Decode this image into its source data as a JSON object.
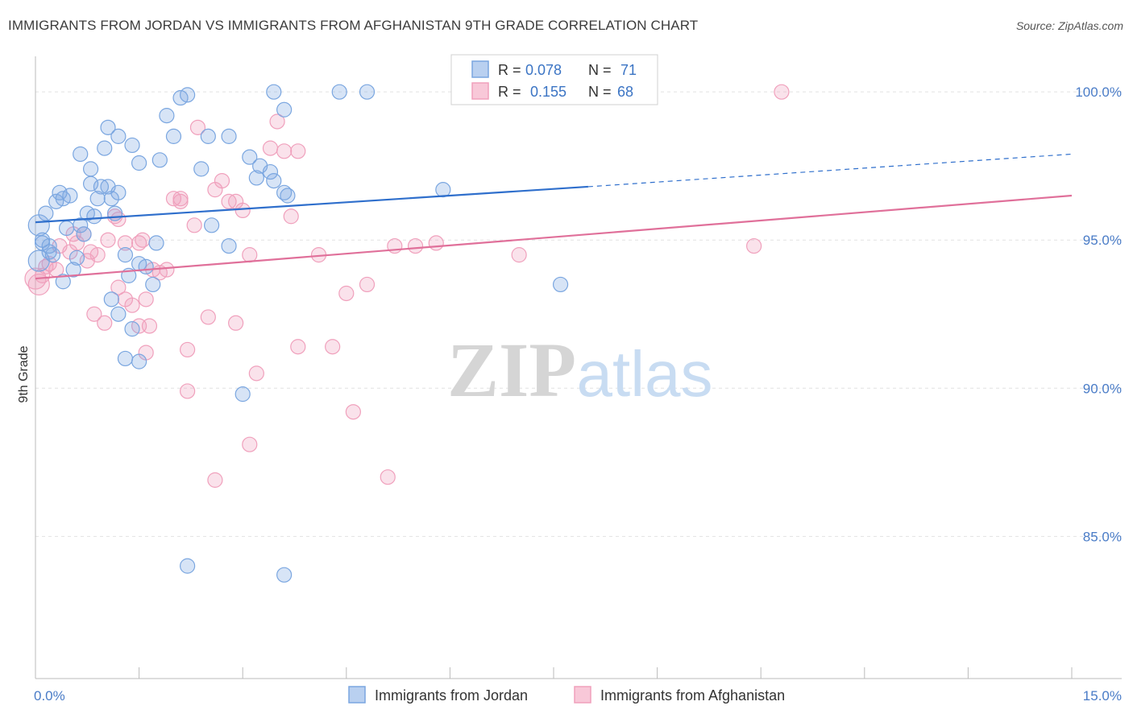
{
  "chart_data": {
    "type": "scatter",
    "title": "IMMIGRANTS FROM JORDAN VS IMMIGRANTS FROM AFGHANISTAN 9TH GRADE CORRELATION CHART",
    "source": "Source: ZipAtlas.com",
    "ylabel": "9th Grade",
    "xlabel": "",
    "xlim": [
      0,
      15
    ],
    "ylim": [
      80.2,
      101.2
    ],
    "x_tick_labels": [
      "0.0%",
      "15.0%"
    ],
    "y_ticks": [
      100,
      95,
      90,
      85
    ],
    "y_tick_labels": [
      "100.0%",
      "95.0%",
      "90.0%",
      "85.0%"
    ],
    "watermark": "ZIPatlas",
    "legend": {
      "r_label": "R =",
      "n_label": "N =",
      "entries": [
        {
          "name": "Immigrants from Jordan",
          "r": "0.078",
          "n": "71"
        },
        {
          "name": "Immigrants from Afghanistan",
          "r": "0.155",
          "n": "68"
        }
      ]
    },
    "series": [
      {
        "name": "Immigrants from Jordan",
        "color": "#7aa6e0",
        "line_color": "#2f6fcc",
        "trend": {
          "x0": 0.0,
          "y0": 95.6,
          "x1": 8.0,
          "y1": 96.8,
          "dash_to_x": 15.0,
          "dash_to_y": 97.9
        },
        "points": [
          [
            0.05,
            95.5
          ],
          [
            0.1,
            95.0
          ],
          [
            0.2,
            94.8
          ],
          [
            0.15,
            95.9
          ],
          [
            0.3,
            96.3
          ],
          [
            0.35,
            96.6
          ],
          [
            0.4,
            96.4
          ],
          [
            0.45,
            95.4
          ],
          [
            0.5,
            96.5
          ],
          [
            0.6,
            94.4
          ],
          [
            0.55,
            94.0
          ],
          [
            0.7,
            95.2
          ],
          [
            0.75,
            95.9
          ],
          [
            0.85,
            95.8
          ],
          [
            0.9,
            96.4
          ],
          [
            0.95,
            96.8
          ],
          [
            1.05,
            96.8
          ],
          [
            1.1,
            96.4
          ],
          [
            1.15,
            95.9
          ],
          [
            1.2,
            96.6
          ],
          [
            0.8,
            96.9
          ],
          [
            1.3,
            94.5
          ],
          [
            1.35,
            93.8
          ],
          [
            1.5,
            94.2
          ],
          [
            1.6,
            94.1
          ],
          [
            1.7,
            93.5
          ],
          [
            1.1,
            93.0
          ],
          [
            1.2,
            92.5
          ],
          [
            1.4,
            92.0
          ],
          [
            1.3,
            91.0
          ],
          [
            0.65,
            97.9
          ],
          [
            0.8,
            97.4
          ],
          [
            1.0,
            98.1
          ],
          [
            1.05,
            98.8
          ],
          [
            1.2,
            98.5
          ],
          [
            1.4,
            98.2
          ],
          [
            1.5,
            97.6
          ],
          [
            1.8,
            97.7
          ],
          [
            1.9,
            99.2
          ],
          [
            2.0,
            98.5
          ],
          [
            2.1,
            99.8
          ],
          [
            2.2,
            99.9
          ],
          [
            2.4,
            97.4
          ],
          [
            2.5,
            98.5
          ],
          [
            2.8,
            98.5
          ],
          [
            2.55,
            95.5
          ],
          [
            2.8,
            94.8
          ],
          [
            3.1,
            97.8
          ],
          [
            3.2,
            97.1
          ],
          [
            3.25,
            97.5
          ],
          [
            3.4,
            97.3
          ],
          [
            3.45,
            97.0
          ],
          [
            3.6,
            99.4
          ],
          [
            3.45,
            100.0
          ],
          [
            4.4,
            100.0
          ],
          [
            4.8,
            100.0
          ],
          [
            3.6,
            96.6
          ],
          [
            3.65,
            96.5
          ],
          [
            5.9,
            96.7
          ],
          [
            7.6,
            93.5
          ],
          [
            3.0,
            89.8
          ],
          [
            2.2,
            84.0
          ],
          [
            3.6,
            83.7
          ],
          [
            0.2,
            94.6
          ],
          [
            0.05,
            94.3
          ],
          [
            0.4,
            93.6
          ],
          [
            0.25,
            94.5
          ],
          [
            1.75,
            94.9
          ],
          [
            0.65,
            95.5
          ],
          [
            0.1,
            94.9
          ],
          [
            1.5,
            90.9
          ]
        ]
      },
      {
        "name": "Immigrants from Afghanistan",
        "color": "#f0a0bc",
        "line_color": "#e0709a",
        "trend": {
          "x0": 0.0,
          "y0": 93.7,
          "x1": 15.0,
          "y1": 96.5
        },
        "points": [
          [
            0.05,
            93.5
          ],
          [
            0.1,
            93.8
          ],
          [
            0.2,
            94.2
          ],
          [
            0.3,
            94.0
          ],
          [
            0.35,
            94.8
          ],
          [
            0.5,
            94.6
          ],
          [
            0.55,
            95.2
          ],
          [
            0.7,
            95.2
          ],
          [
            0.75,
            94.3
          ],
          [
            0.8,
            94.6
          ],
          [
            0.9,
            94.5
          ],
          [
            1.05,
            95.0
          ],
          [
            1.15,
            95.8
          ],
          [
            1.2,
            95.7
          ],
          [
            1.3,
            94.9
          ],
          [
            1.5,
            94.9
          ],
          [
            1.55,
            95.0
          ],
          [
            1.7,
            94.0
          ],
          [
            1.8,
            93.9
          ],
          [
            1.9,
            94.0
          ],
          [
            2.0,
            96.4
          ],
          [
            2.1,
            96.4
          ],
          [
            2.3,
            95.5
          ],
          [
            2.6,
            96.7
          ],
          [
            2.7,
            97.0
          ],
          [
            2.8,
            96.3
          ],
          [
            2.9,
            96.3
          ],
          [
            3.0,
            96.0
          ],
          [
            3.1,
            94.5
          ],
          [
            3.4,
            98.1
          ],
          [
            3.5,
            99.0
          ],
          [
            3.6,
            98.0
          ],
          [
            3.8,
            98.0
          ],
          [
            3.7,
            95.8
          ],
          [
            4.1,
            94.5
          ],
          [
            4.5,
            93.2
          ],
          [
            4.8,
            93.5
          ],
          [
            5.2,
            94.8
          ],
          [
            5.5,
            94.8
          ],
          [
            5.8,
            94.9
          ],
          [
            7.0,
            94.5
          ],
          [
            10.4,
            94.8
          ],
          [
            10.8,
            100.0
          ],
          [
            2.35,
            98.8
          ],
          [
            0.85,
            92.5
          ],
          [
            1.0,
            92.2
          ],
          [
            1.3,
            93.0
          ],
          [
            1.4,
            92.8
          ],
          [
            1.5,
            92.1
          ],
          [
            1.6,
            93.0
          ],
          [
            1.65,
            92.1
          ],
          [
            2.5,
            92.4
          ],
          [
            2.9,
            92.2
          ],
          [
            1.6,
            91.2
          ],
          [
            2.2,
            91.3
          ],
          [
            3.8,
            91.4
          ],
          [
            4.3,
            91.4
          ],
          [
            3.2,
            90.5
          ],
          [
            2.2,
            89.9
          ],
          [
            4.6,
            89.2
          ],
          [
            3.1,
            88.1
          ],
          [
            2.6,
            86.9
          ],
          [
            5.1,
            87.0
          ],
          [
            0.0,
            93.7
          ],
          [
            0.15,
            94.1
          ],
          [
            1.2,
            93.4
          ],
          [
            0.6,
            94.9
          ],
          [
            2.1,
            96.3
          ]
        ]
      }
    ]
  }
}
